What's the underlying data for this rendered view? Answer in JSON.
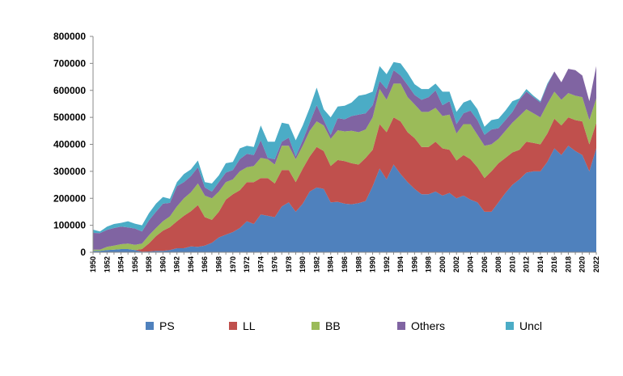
{
  "chart_data": {
    "type": "area",
    "stacked": true,
    "grid": false,
    "legend_position": "bottom",
    "ylim": [
      0,
      800000
    ],
    "yticks": [
      "0",
      "100000",
      "200000",
      "300000",
      "400000",
      "500000",
      "600000",
      "700000",
      "800000"
    ],
    "x": [
      1950,
      1951,
      1952,
      1953,
      1954,
      1955,
      1956,
      1957,
      1958,
      1959,
      1960,
      1961,
      1962,
      1963,
      1964,
      1965,
      1966,
      1967,
      1968,
      1969,
      1970,
      1971,
      1972,
      1973,
      1974,
      1975,
      1976,
      1977,
      1978,
      1979,
      1980,
      1981,
      1982,
      1983,
      1984,
      1985,
      1986,
      1987,
      1988,
      1989,
      1990,
      1991,
      1992,
      1993,
      1994,
      1995,
      1996,
      1997,
      1998,
      1999,
      2000,
      2001,
      2002,
      2003,
      2004,
      2005,
      2006,
      2007,
      2008,
      2009,
      2010,
      2011,
      2012,
      2013,
      2014,
      2015,
      2016,
      2017,
      2018,
      2019,
      2020,
      2021,
      2022
    ],
    "xticks": [
      "1950",
      "1952",
      "1954",
      "1956",
      "1958",
      "1960",
      "1962",
      "1964",
      "1966",
      "1968",
      "1970",
      "1972",
      "1974",
      "1976",
      "1978",
      "1980",
      "1982",
      "1984",
      "1986",
      "1988",
      "1990",
      "1992",
      "1994",
      "1996",
      "1998",
      "2000",
      "2002",
      "2004",
      "2006",
      "2008",
      "2010",
      "2012",
      "2014",
      "2016",
      "2018",
      "2020",
      "2022"
    ],
    "series": [
      {
        "name": "PS",
        "color": "#4f81bd",
        "values": [
          5000,
          5000,
          8000,
          10000,
          12000,
          12000,
          8000,
          2000,
          3000,
          5000,
          5000,
          8000,
          15000,
          15000,
          22000,
          20000,
          25000,
          35000,
          55000,
          65000,
          75000,
          90000,
          115000,
          105000,
          140000,
          135000,
          130000,
          170000,
          185000,
          150000,
          180000,
          225000,
          240000,
          235000,
          185000,
          187000,
          180000,
          178000,
          182000,
          190000,
          245000,
          310000,
          270000,
          325000,
          290000,
          260000,
          235000,
          215000,
          215000,
          225000,
          210000,
          220000,
          200000,
          210000,
          195000,
          185000,
          150000,
          150000,
          185000,
          220000,
          250000,
          270000,
          295000,
          300000,
          300000,
          335000,
          385000,
          360000,
          395000,
          375000,
          360000,
          300000,
          385000
        ]
      },
      {
        "name": "LL",
        "color": "#c0504d",
        "values": [
          0,
          0,
          0,
          0,
          0,
          0,
          0,
          10000,
          30000,
          55000,
          75000,
          85000,
          100000,
          120000,
          130000,
          155000,
          105000,
          85000,
          95000,
          130000,
          140000,
          140000,
          145000,
          155000,
          135000,
          140000,
          125000,
          135000,
          120000,
          110000,
          130000,
          130000,
          150000,
          140000,
          135000,
          155000,
          158000,
          152000,
          143000,
          160000,
          135000,
          165000,
          175000,
          175000,
          195000,
          185000,
          188000,
          175000,
          175000,
          185000,
          175000,
          160000,
          140000,
          150000,
          150000,
          130000,
          125000,
          150000,
          145000,
          130000,
          120000,
          110000,
          115000,
          105000,
          100000,
          105000,
          110000,
          110000,
          105000,
          115000,
          125000,
          100000,
          95000
        ]
      },
      {
        "name": "BB",
        "color": "#9bbb59",
        "values": [
          5000,
          5000,
          12000,
          15000,
          18000,
          20000,
          20000,
          20000,
          30000,
          30000,
          35000,
          40000,
          55000,
          65000,
          70000,
          80000,
          80000,
          80000,
          75000,
          65000,
          55000,
          70000,
          55000,
          60000,
          75000,
          70000,
          70000,
          90000,
          90000,
          85000,
          85000,
          95000,
          95000,
          95000,
          100000,
          110000,
          110000,
          120000,
          120000,
          105000,
          120000,
          130000,
          120000,
          125000,
          140000,
          130000,
          125000,
          130000,
          130000,
          125000,
          120000,
          130000,
          100000,
          115000,
          130000,
          120000,
          120000,
          100000,
          90000,
          100000,
          110000,
          125000,
          120000,
          110000,
          100000,
          110000,
          100000,
          95000,
          90000,
          90000,
          90000,
          90000,
          90000
        ]
      },
      {
        "name": "Others",
        "color": "#8064a2",
        "values": [
          62000,
          61000,
          63000,
          65000,
          65000,
          60000,
          60000,
          45000,
          55000,
          60000,
          65000,
          50000,
          75000,
          60000,
          60000,
          60000,
          30000,
          25000,
          35000,
          35000,
          35000,
          45000,
          50000,
          40000,
          65000,
          5000,
          20000,
          15000,
          30000,
          10000,
          20000,
          30000,
          60000,
          20000,
          15000,
          45000,
          45000,
          55000,
          65000,
          60000,
          45000,
          30000,
          40000,
          50000,
          30000,
          45000,
          35000,
          45000,
          55000,
          65000,
          40000,
          50000,
          35000,
          40000,
          50000,
          55000,
          40000,
          55000,
          40000,
          40000,
          40000,
          60000,
          65000,
          60000,
          55000,
          70000,
          75000,
          65000,
          90000,
          95000,
          80000,
          70000,
          120000
        ]
      },
      {
        "name": "Uncl",
        "color": "#4bacc6",
        "values": [
          12000,
          6000,
          12000,
          15000,
          14000,
          23000,
          18000,
          23000,
          27000,
          30000,
          25000,
          15000,
          15000,
          30000,
          25000,
          25000,
          20000,
          30000,
          25000,
          35000,
          30000,
          40000,
          30000,
          30000,
          55000,
          60000,
          65000,
          70000,
          50000,
          60000,
          55000,
          55000,
          65000,
          40000,
          65000,
          43000,
          50000,
          50000,
          70000,
          70000,
          50000,
          55000,
          55000,
          30000,
          45000,
          45000,
          40000,
          40000,
          30000,
          25000,
          50000,
          35000,
          45000,
          40000,
          40000,
          40000,
          30000,
          35000,
          35000,
          35000,
          40000,
          5000,
          10000,
          5000,
          5000,
          5000,
          0,
          0,
          0,
          0,
          0,
          0,
          0
        ]
      }
    ]
  }
}
